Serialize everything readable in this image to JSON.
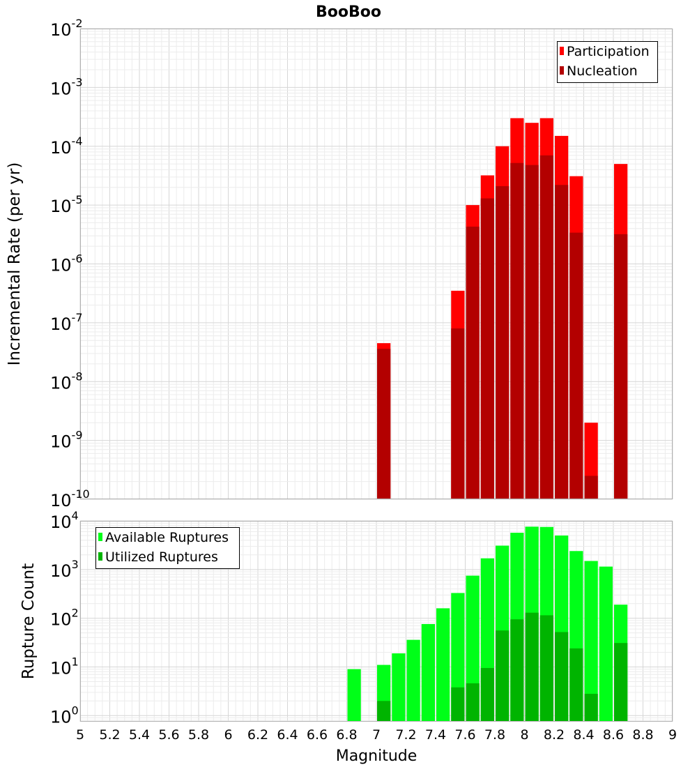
{
  "chart_data": {
    "title": "BooBoo",
    "xlabel": "Magnitude",
    "xlim": [
      5,
      9
    ],
    "x_ticks": [
      "5",
      "5.2",
      "5.4",
      "5.6",
      "5.8",
      "6",
      "6.2",
      "6.4",
      "6.6",
      "6.8",
      "7",
      "7.2",
      "7.4",
      "7.6",
      "7.8",
      "8",
      "8.2",
      "8.4",
      "8.6",
      "8.8",
      "9"
    ],
    "bin_width": 0.1,
    "panels": [
      {
        "type": "bar",
        "ylabel": "Incremental Rate (per yr)",
        "yscale": "log",
        "ylim": [
          1e-10,
          0.01
        ],
        "y_ticks": [
          {
            "base": "10",
            "exp": "-2"
          },
          {
            "base": "10",
            "exp": "-3"
          },
          {
            "base": "10",
            "exp": "-4"
          },
          {
            "base": "10",
            "exp": "-5"
          },
          {
            "base": "10",
            "exp": "-6"
          },
          {
            "base": "10",
            "exp": "-7"
          },
          {
            "base": "10",
            "exp": "-8"
          },
          {
            "base": "10",
            "exp": "-9"
          },
          {
            "base": "10",
            "exp": "-10"
          }
        ],
        "legend_position": "top-right",
        "series": [
          {
            "name": "Participation",
            "color": "#ff0000",
            "points": [
              {
                "x": 7.05,
                "y": 4.5e-08
              },
              {
                "x": 7.55,
                "y": 3.5e-07
              },
              {
                "x": 7.65,
                "y": 1e-05
              },
              {
                "x": 7.75,
                "y": 3.2e-05
              },
              {
                "x": 7.85,
                "y": 0.0001
              },
              {
                "x": 7.95,
                "y": 0.0003
              },
              {
                "x": 8.05,
                "y": 0.00025
              },
              {
                "x": 8.15,
                "y": 0.0003
              },
              {
                "x": 8.25,
                "y": 0.00015
              },
              {
                "x": 8.35,
                "y": 3.1e-05
              },
              {
                "x": 8.45,
                "y": 2e-09
              },
              {
                "x": 8.65,
                "y": 5e-05
              }
            ]
          },
          {
            "name": "Nucleation",
            "color": "#b30000",
            "points": [
              {
                "x": 7.05,
                "y": 3.6e-08
              },
              {
                "x": 7.55,
                "y": 8e-08
              },
              {
                "x": 7.65,
                "y": 4.3e-06
              },
              {
                "x": 7.75,
                "y": 1.3e-05
              },
              {
                "x": 7.85,
                "y": 2.1e-05
              },
              {
                "x": 7.95,
                "y": 5.2e-05
              },
              {
                "x": 8.05,
                "y": 4.8e-05
              },
              {
                "x": 8.15,
                "y": 7e-05
              },
              {
                "x": 8.25,
                "y": 2.2e-05
              },
              {
                "x": 8.35,
                "y": 3.4e-06
              },
              {
                "x": 8.45,
                "y": 2.5e-10
              },
              {
                "x": 8.65,
                "y": 3.2e-06
              }
            ]
          }
        ]
      },
      {
        "type": "bar",
        "ylabel": "Rupture Count",
        "yscale": "log",
        "ylim": [
          0.75,
          10000
        ],
        "y_ticks": [
          {
            "base": "10",
            "exp": "4"
          },
          {
            "base": "10",
            "exp": "3"
          },
          {
            "base": "10",
            "exp": "2"
          },
          {
            "base": "10",
            "exp": "1"
          },
          {
            "base": "10",
            "exp": "0"
          }
        ],
        "legend_position": "top-left",
        "series": [
          {
            "name": "Available Ruptures",
            "color": "#00ff18",
            "points": [
              {
                "x": 6.85,
                "y": 9
              },
              {
                "x": 7.05,
                "y": 11
              },
              {
                "x": 7.15,
                "y": 19
              },
              {
                "x": 7.25,
                "y": 36
              },
              {
                "x": 7.35,
                "y": 76
              },
              {
                "x": 7.45,
                "y": 160
              },
              {
                "x": 7.55,
                "y": 330
              },
              {
                "x": 7.65,
                "y": 750
              },
              {
                "x": 7.75,
                "y": 1700
              },
              {
                "x": 7.85,
                "y": 3100
              },
              {
                "x": 7.95,
                "y": 5700
              },
              {
                "x": 8.05,
                "y": 7600
              },
              {
                "x": 8.15,
                "y": 7500
              },
              {
                "x": 8.25,
                "y": 5000
              },
              {
                "x": 8.35,
                "y": 2400
              },
              {
                "x": 8.45,
                "y": 1500
              },
              {
                "x": 8.55,
                "y": 1150
              },
              {
                "x": 8.65,
                "y": 190
              }
            ]
          },
          {
            "name": "Utilized Ruptures",
            "color": "#00b400",
            "points": [
              {
                "x": 7.05,
                "y": 2
              },
              {
                "x": 7.55,
                "y": 3.8
              },
              {
                "x": 7.65,
                "y": 4.6
              },
              {
                "x": 7.75,
                "y": 9.5
              },
              {
                "x": 7.85,
                "y": 56
              },
              {
                "x": 7.95,
                "y": 95
              },
              {
                "x": 8.05,
                "y": 130
              },
              {
                "x": 8.15,
                "y": 115
              },
              {
                "x": 8.25,
                "y": 52
              },
              {
                "x": 8.35,
                "y": 24
              },
              {
                "x": 8.45,
                "y": 2.8
              },
              {
                "x": 8.65,
                "y": 31
              }
            ]
          }
        ]
      }
    ]
  }
}
